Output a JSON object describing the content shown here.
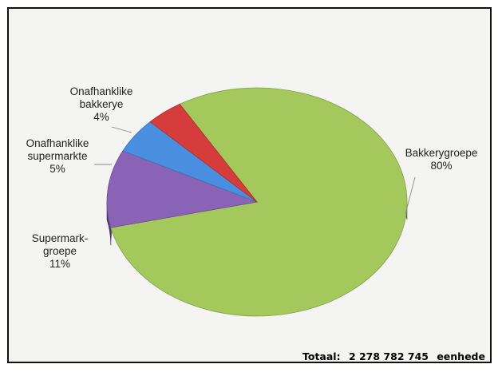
{
  "chart_data": {
    "type": "pie",
    "style": "3d",
    "slices": [
      {
        "label_lines": [
          "Bakkerygroepe",
          "80%"
        ],
        "value": 80,
        "color": "#a4c85c"
      },
      {
        "label_lines": [
          "Supermark-",
          "groepe",
          "11%"
        ],
        "value": 11,
        "color": "#8a62b6"
      },
      {
        "label_lines": [
          "Onafhanklike",
          "supermarkte",
          "5%"
        ],
        "value": 5,
        "color": "#4a8ee0"
      },
      {
        "label_lines": [
          "Onafhanklike",
          "bakkerye",
          "4%"
        ],
        "value": 4,
        "color": "#d63c3c"
      }
    ],
    "footer": {
      "label": "Totaal:",
      "value": "2 278 782 745",
      "unit": "eenhede"
    }
  }
}
